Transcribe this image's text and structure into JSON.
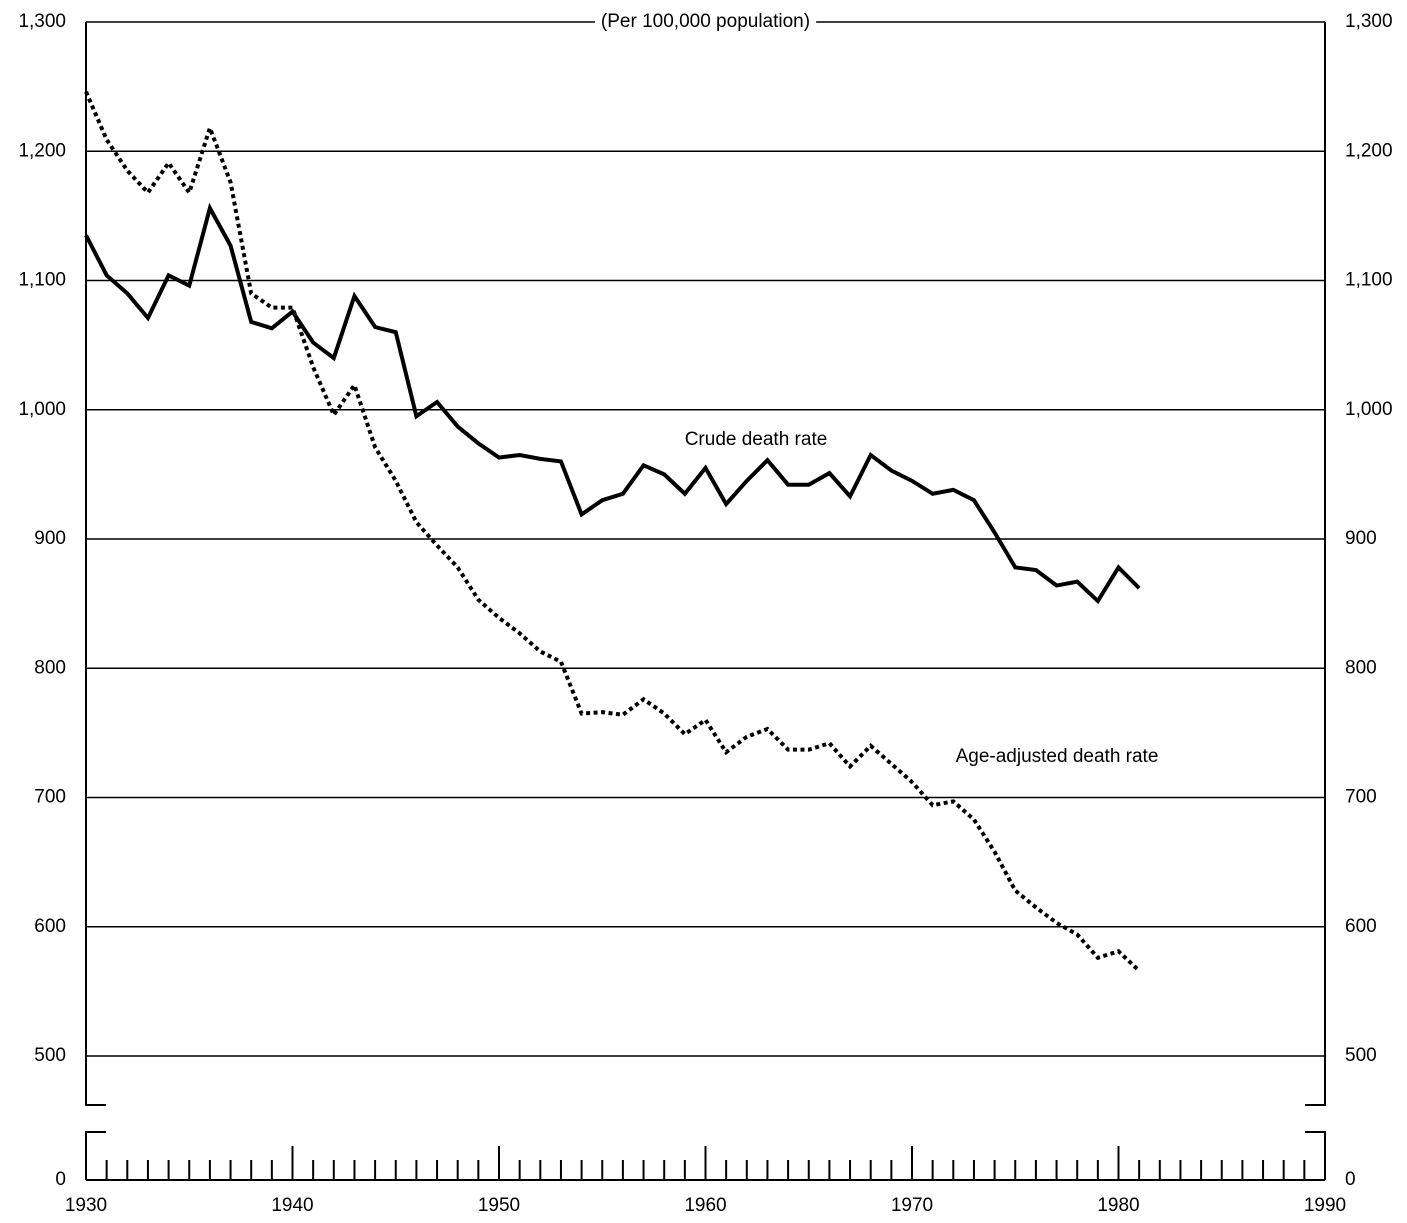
{
  "chart_data": {
    "type": "line",
    "y_label": "(Per 100,000 population)",
    "x": [
      1930,
      1931,
      1932,
      1933,
      1934,
      1935,
      1936,
      1937,
      1938,
      1939,
      1940,
      1941,
      1942,
      1943,
      1944,
      1945,
      1946,
      1947,
      1948,
      1949,
      1950,
      1951,
      1952,
      1953,
      1954,
      1955,
      1956,
      1957,
      1958,
      1959,
      1960,
      1961,
      1962,
      1963,
      1964,
      1965,
      1966,
      1967,
      1968,
      1969,
      1970,
      1971,
      1972,
      1973,
      1974,
      1975,
      1976,
      1977,
      1978,
      1979,
      1980,
      1981
    ],
    "series": [
      {
        "name": "Crude death rate",
        "color": "#000000",
        "style": "solid",
        "values": [
          1135,
          1104,
          1090,
          1071,
          1104,
          1096,
          1156,
          1127,
          1068,
          1063,
          1076,
          1052,
          1040,
          1088,
          1064,
          1060,
          995,
          1006,
          987,
          974,
          963,
          965,
          962,
          960,
          919,
          930,
          935,
          957,
          950,
          935,
          955,
          927,
          945,
          961,
          942,
          942,
          951,
          933,
          965,
          953,
          945,
          935,
          938,
          930,
          905,
          878,
          876,
          864,
          867,
          852,
          878,
          862
        ]
      },
      {
        "name": "Age-adjusted death rate",
        "color": "#000000",
        "style": "dotted",
        "values": [
          1246,
          1209,
          1185,
          1168,
          1191,
          1168,
          1218,
          1176,
          1090,
          1079,
          1079,
          1033,
          996,
          1019,
          971,
          945,
          913,
          895,
          878,
          853,
          839,
          827,
          813,
          805,
          765,
          766,
          764,
          776,
          765,
          749,
          760,
          735,
          747,
          753,
          737,
          737,
          742,
          724,
          740,
          726,
          712,
          694,
          697,
          683,
          658,
          628,
          615,
          603,
          594,
          576,
          581,
          566
        ]
      }
    ],
    "xlim": [
      1930,
      1990
    ],
    "xticks": [
      1930,
      1940,
      1950,
      1960,
      1970,
      1980,
      1990
    ],
    "ylim": [
      0,
      1300
    ],
    "yticks": [
      0,
      500,
      600,
      700,
      800,
      900,
      {
        "value": 1000,
        "label": "1,000"
      },
      {
        "value": 1100,
        "label": "1,100"
      },
      {
        "value": 1200,
        "label": "1,200"
      },
      {
        "value": 1300,
        "label": "1,300"
      }
    ],
    "y_axis_break": true,
    "grid": true
  }
}
